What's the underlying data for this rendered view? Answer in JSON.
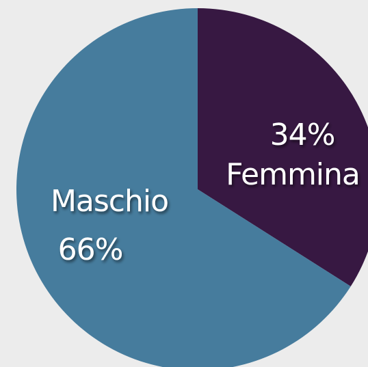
{
  "chart_data": {
    "type": "pie",
    "categories": [
      "Femmina",
      "Maschio"
    ],
    "values": [
      34,
      66
    ],
    "value_labels": [
      "34%",
      "66%"
    ],
    "colors": [
      "#371842",
      "#467c9d"
    ]
  }
}
